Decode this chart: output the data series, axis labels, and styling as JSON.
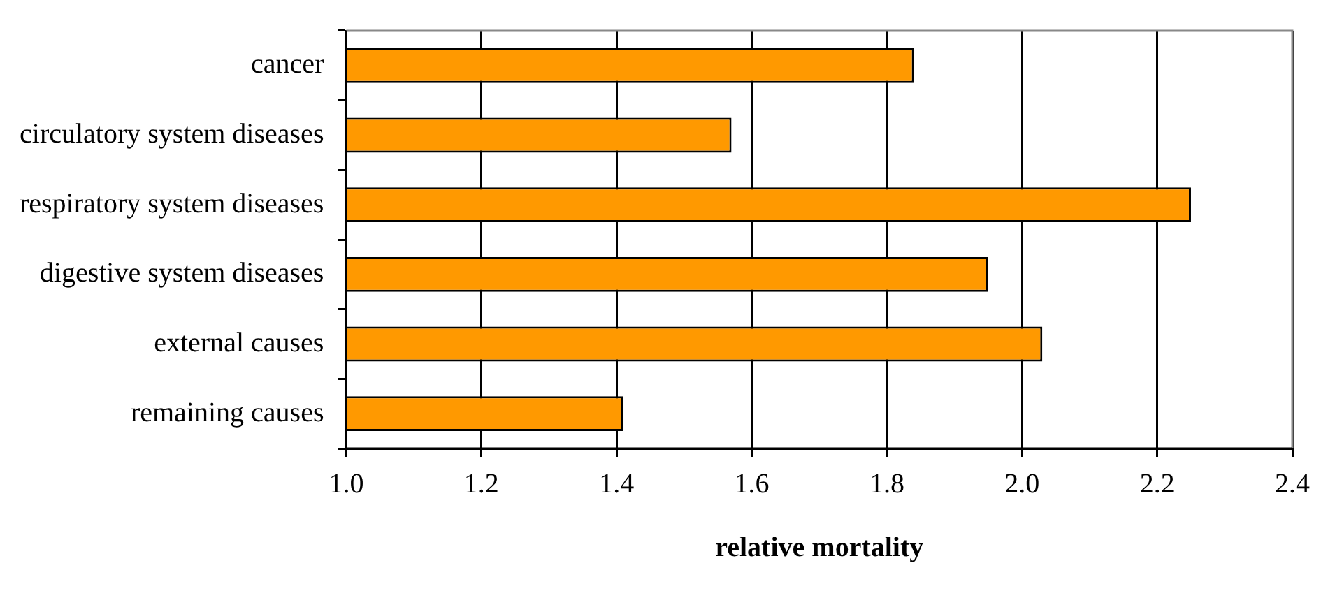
{
  "chart_data": {
    "type": "bar",
    "orientation": "horizontal",
    "xlabel": "relative mortality",
    "categories": [
      "cancer",
      "circulatory system diseases",
      "respiratory system diseases",
      "digestive system diseases",
      "external causes",
      "remaining causes"
    ],
    "values": [
      1.84,
      1.57,
      2.25,
      1.95,
      2.03,
      1.41
    ],
    "color": "#ff9900",
    "xlim": [
      1.0,
      2.4
    ],
    "xticks": [
      {
        "value": 1.0,
        "label": "1.0"
      },
      {
        "value": 1.2,
        "label": "1.2"
      },
      {
        "value": 1.4,
        "label": "1.4"
      },
      {
        "value": 1.6,
        "label": "1.6"
      },
      {
        "value": 1.8,
        "label": "1.8"
      },
      {
        "value": 2.0,
        "label": "2.0"
      },
      {
        "value": 2.2,
        "label": "2.2"
      },
      {
        "value": 2.4,
        "label": "2.4"
      }
    ],
    "grid": "x",
    "legend": false
  }
}
